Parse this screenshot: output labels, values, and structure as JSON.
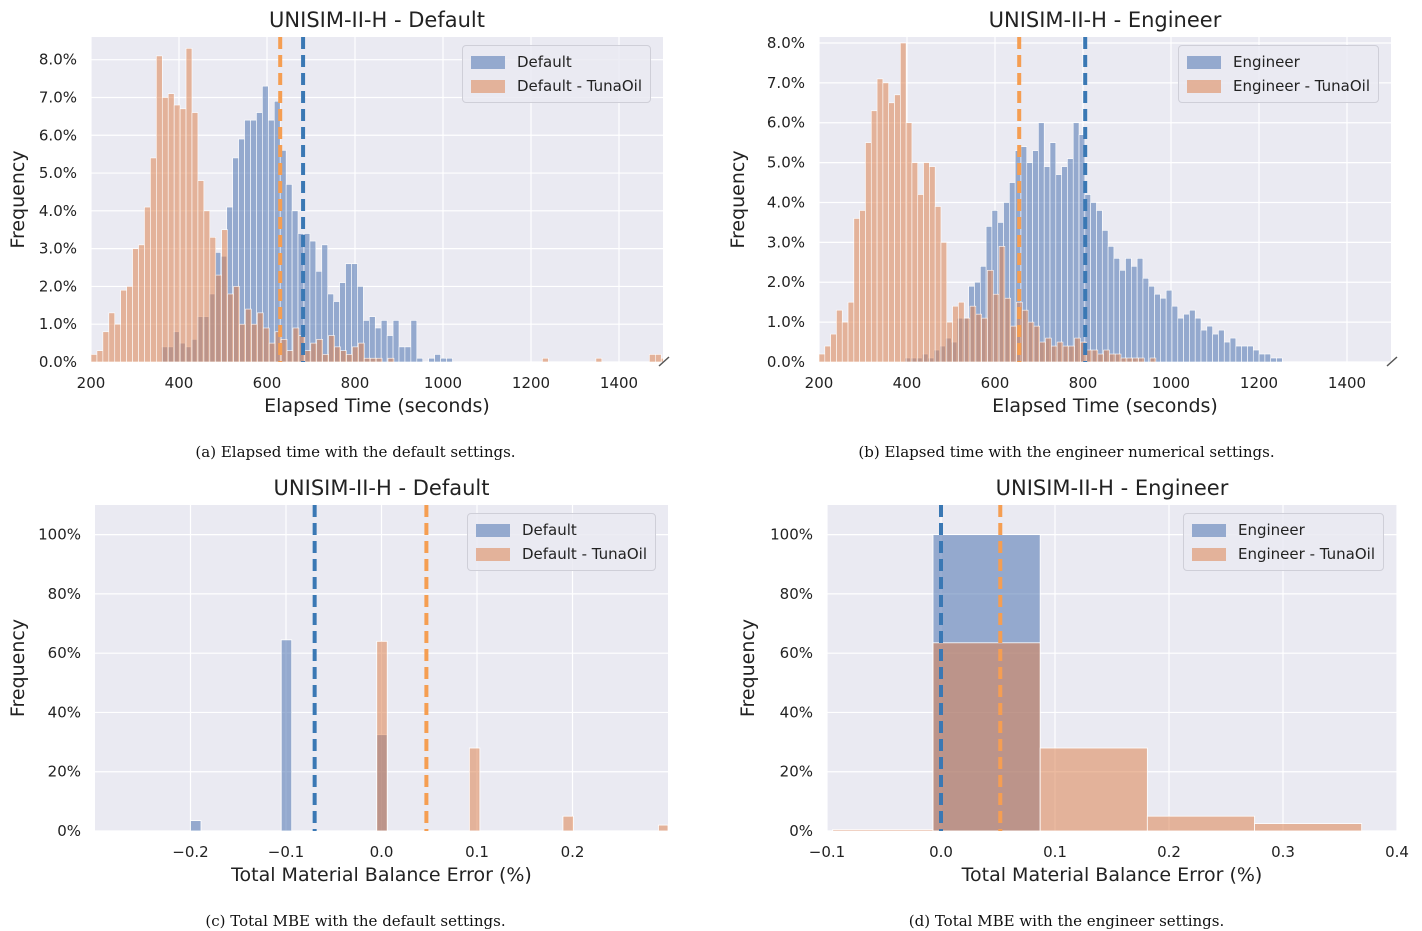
{
  "colors": {
    "blue": "#4c72b0",
    "orange": "#dd8452",
    "blue_line": "#3a78b4",
    "orange_line": "#f59e52",
    "plot_bg": "#eaeaf2",
    "grid": "#ffffff"
  },
  "chart_data": [
    {
      "type": "bar",
      "title": "UNISIM-II-H - Default",
      "xlabel": "Elapsed Time (seconds)",
      "ylabel": "Frequency",
      "xlim": [
        200,
        1500
      ],
      "ylim": [
        0,
        0.086
      ],
      "xticks": [
        200,
        400,
        600,
        800,
        1000,
        1200,
        1400
      ],
      "xtick_labels": [
        "200",
        "400",
        "600",
        "800",
        "1000",
        "1200",
        "1400"
      ],
      "yticks": [
        0,
        0.01,
        0.02,
        0.03,
        0.04,
        0.05,
        0.06,
        0.07,
        0.08
      ],
      "ytick_labels": [
        "0.0%",
        "1.0%",
        "2.0%",
        "3.0%",
        "4.0%",
        "5.0%",
        "6.0%",
        "7.0%",
        "8.0%"
      ],
      "axis_break": true,
      "legend_position": "top-right",
      "series": [
        {
          "name": "Default",
          "color": "blue",
          "bin_start": 360,
          "bin_width": 13.5,
          "values": [
            0.004,
            0.004,
            0.008,
            0.005,
            0.004,
            0.006,
            0.012,
            0.012,
            0.018,
            0.029,
            0.028,
            0.041,
            0.054,
            0.059,
            0.064,
            0.064,
            0.066,
            0.073,
            0.064,
            0.069,
            0.056,
            0.047,
            0.04,
            0.034,
            0.034,
            0.032,
            0.024,
            0.031,
            0.018,
            0.016,
            0.021,
            0.026,
            0.026,
            0.02,
            0.011,
            0.012,
            0.009,
            0.011,
            0.007,
            0.011,
            0.004,
            0.004,
            0.011,
            0.001,
            0.0,
            0.001,
            0.002,
            0.001,
            0.001
          ]
        },
        {
          "name": "Default - TunaOil",
          "color": "orange",
          "bin_start": 200,
          "bin_width": 13.5,
          "values": [
            0.002,
            0.003,
            0.008,
            0.013,
            0.01,
            0.019,
            0.02,
            0.03,
            0.031,
            0.041,
            0.054,
            0.081,
            0.07,
            0.071,
            0.068,
            0.067,
            0.083,
            0.066,
            0.048,
            0.04,
            0.033,
            0.023,
            0.035,
            0.018,
            0.02,
            0.01,
            0.014,
            0.01,
            0.013,
            0.009,
            0.005,
            0.008,
            0.006,
            0.003,
            0.009,
            0.007,
            0.003,
            0.005,
            0.006,
            0.002,
            0.007,
            0.004,
            0.003,
            0.002,
            0.004,
            0.005,
            0.001,
            0.001,
            0.001,
            0.0,
            0.001,
            0.0,
            0.0,
            0.0,
            0.0,
            0.0,
            0.0,
            0.0,
            0.0,
            0.0,
            0.0,
            0.0,
            0.0,
            0.0,
            0.0,
            0.0,
            0.0,
            0.0,
            0.0,
            0.0,
            0.0,
            0.0,
            0.0,
            0.0,
            0.0,
            0.0,
            0.001,
            0.0,
            0.0,
            0.0,
            0.0,
            0.0,
            0.0,
            0.0,
            0.0,
            0.001,
            0.0,
            0.0,
            0.0,
            0.0,
            0.0,
            0.0,
            0.0,
            0.0,
            0.002,
            0.002,
            0.001,
            0.0,
            0.0,
            0.0,
            0.001
          ]
        }
      ],
      "vlines": [
        {
          "x": 682,
          "color": "blue_line"
        },
        {
          "x": 630,
          "color": "orange_line"
        }
      ]
    },
    {
      "type": "bar",
      "title": "UNISIM-II-H - Engineer",
      "xlabel": "Elapsed Time (seconds)",
      "ylabel": "Frequency",
      "xlim": [
        200,
        1500
      ],
      "ylim": [
        0,
        0.0815
      ],
      "xticks": [
        200,
        400,
        600,
        800,
        1000,
        1200,
        1400
      ],
      "xtick_labels": [
        "200",
        "400",
        "600",
        "800",
        "1000",
        "1200",
        "1400"
      ],
      "yticks": [
        0,
        0.01,
        0.02,
        0.03,
        0.04,
        0.05,
        0.06,
        0.07,
        0.08
      ],
      "ytick_labels": [
        "0.0%",
        "1.0%",
        "2.0%",
        "3.0%",
        "4.0%",
        "5.0%",
        "6.0%",
        "7.0%",
        "8.0%"
      ],
      "axis_break": true,
      "legend_position": "top-right",
      "series": [
        {
          "name": "Engineer",
          "color": "blue",
          "bin_start": 395,
          "bin_width": 13.2,
          "values": [
            0.001,
            0.001,
            0.001,
            0.002,
            0.001,
            0.003,
            0.004,
            0.006,
            0.005,
            0.011,
            0.011,
            0.019,
            0.02,
            0.024,
            0.034,
            0.038,
            0.035,
            0.04,
            0.045,
            0.053,
            0.054,
            0.05,
            0.053,
            0.06,
            0.049,
            0.055,
            0.047,
            0.049,
            0.051,
            0.06,
            0.057,
            0.042,
            0.04,
            0.038,
            0.033,
            0.029,
            0.026,
            0.023,
            0.026,
            0.024,
            0.026,
            0.021,
            0.019,
            0.017,
            0.016,
            0.018,
            0.014,
            0.011,
            0.012,
            0.013,
            0.011,
            0.008,
            0.009,
            0.007,
            0.008,
            0.005,
            0.006,
            0.004,
            0.004,
            0.004,
            0.003,
            0.002,
            0.002,
            0.001,
            0.001
          ]
        },
        {
          "name": "Engineer - TunaOil",
          "color": "orange",
          "bin_start": 200,
          "bin_width": 13.2,
          "values": [
            0.002,
            0.004,
            0.007,
            0.013,
            0.01,
            0.015,
            0.036,
            0.038,
            0.055,
            0.063,
            0.071,
            0.07,
            0.065,
            0.067,
            0.08,
            0.06,
            0.05,
            0.042,
            0.05,
            0.049,
            0.039,
            0.03,
            0.01,
            0.014,
            0.015,
            0.011,
            0.014,
            0.012,
            0.011,
            0.023,
            0.017,
            0.029,
            0.016,
            0.009,
            0.015,
            0.013,
            0.01,
            0.009,
            0.005,
            0.006,
            0.004,
            0.005,
            0.004,
            0.004,
            0.006,
            0.005,
            0.003,
            0.003,
            0.002,
            0.003,
            0.002,
            0.002,
            0.001,
            0.001,
            0.001,
            0.001,
            0.0,
            0.001,
            0.0,
            0.0,
            0.0,
            0.0,
            0.0,
            0.0,
            0.0,
            0.0,
            0.0,
            0.0,
            0.0,
            0.0,
            0.0,
            0.0,
            0.0,
            0.0,
            0.0,
            0.0,
            0.0,
            0.0,
            0.0,
            0.0,
            0.0,
            0.0,
            0.0,
            0.0,
            0.0,
            0.0,
            0.0,
            0.0,
            0.0,
            0.0,
            0.0,
            0.0,
            0.0,
            0.0,
            0.0,
            0.0,
            0.0,
            0.0,
            0.0,
            0.0,
            0.0,
            0.0,
            0.0,
            0.0,
            0.0,
            0.0,
            0.0,
            0.0,
            0.0,
            0.001,
            0.002,
            0.001,
            0.002,
            0.001
          ]
        }
      ],
      "vlines": [
        {
          "x": 805,
          "color": "blue_line"
        },
        {
          "x": 655,
          "color": "orange_line"
        }
      ]
    },
    {
      "type": "bar",
      "title": "UNISIM-II-H - Default",
      "xlabel": "Total Material Balance Error (%)",
      "ylabel": "Frequency",
      "xlim": [
        -0.3,
        0.3
      ],
      "ylim": [
        0,
        1.1
      ],
      "xticks": [
        -0.2,
        -0.1,
        0.0,
        0.1,
        0.2
      ],
      "xtick_labels": [
        "−0.2",
        "−0.1",
        "0.0",
        "0.1",
        "0.2"
      ],
      "yticks": [
        0,
        0.2,
        0.4,
        0.6,
        0.8,
        1.0
      ],
      "ytick_labels": [
        "0%",
        "20%",
        "40%",
        "60%",
        "80%",
        "100%"
      ],
      "legend_position": "top-right",
      "series": [
        {
          "name": "Default",
          "color": "blue",
          "bars": [
            {
              "x0": -0.2,
              "x1": -0.189,
              "y": 0.035
            },
            {
              "x0": -0.105,
              "x1": -0.094,
              "y": 0.645
            },
            {
              "x0": -0.005,
              "x1": 0.006,
              "y": 0.325
            }
          ]
        },
        {
          "name": "Default - TunaOil",
          "color": "orange",
          "bars": [
            {
              "x0": -0.005,
              "x1": 0.006,
              "y": 0.64
            },
            {
              "x0": 0.092,
              "x1": 0.103,
              "y": 0.28
            },
            {
              "x0": 0.19,
              "x1": 0.201,
              "y": 0.05
            },
            {
              "x0": 0.29,
              "x1": 0.3,
              "y": 0.02
            }
          ]
        }
      ],
      "vlines": [
        {
          "x": -0.07,
          "color": "blue_line"
        },
        {
          "x": 0.047,
          "color": "orange_line"
        }
      ]
    },
    {
      "type": "bar",
      "title": "UNISIM-II-H - Engineer",
      "xlabel": "Total Material Balance Error (%)",
      "ylabel": "Frequency",
      "xlim": [
        -0.1,
        0.4
      ],
      "ylim": [
        0,
        1.1
      ],
      "xticks": [
        -0.1,
        0.0,
        0.1,
        0.2,
        0.3,
        0.4
      ],
      "xtick_labels": [
        "−0.1",
        "0.0",
        "0.1",
        "0.2",
        "0.3",
        "0.4"
      ],
      "yticks": [
        0,
        0.2,
        0.4,
        0.6,
        0.8,
        1.0
      ],
      "ytick_labels": [
        "0%",
        "20%",
        "40%",
        "60%",
        "80%",
        "100%"
      ],
      "legend_position": "top-right",
      "series": [
        {
          "name": "Engineer",
          "color": "blue",
          "bars": [
            {
              "x0": -0.007,
              "x1": 0.087,
              "y": 1.0
            }
          ]
        },
        {
          "name": "Engineer - TunaOil",
          "color": "orange",
          "bars": [
            {
              "x0": -0.095,
              "x1": -0.007,
              "y": 0.005
            },
            {
              "x0": -0.007,
              "x1": 0.087,
              "y": 0.635
            },
            {
              "x0": 0.087,
              "x1": 0.181,
              "y": 0.28
            },
            {
              "x0": 0.181,
              "x1": 0.275,
              "y": 0.05
            },
            {
              "x0": 0.275,
              "x1": 0.369,
              "y": 0.025
            }
          ]
        }
      ],
      "vlines": [
        {
          "x": 0.0,
          "color": "blue_line"
        },
        {
          "x": 0.052,
          "color": "orange_line"
        }
      ]
    }
  ],
  "captions": [
    "(a) Elapsed time with the default settings.",
    "(b) Elapsed time with the engineer numerical settings.",
    "(c) Total MBE with the default settings.",
    "(d) Total MBE with the engineer settings."
  ]
}
